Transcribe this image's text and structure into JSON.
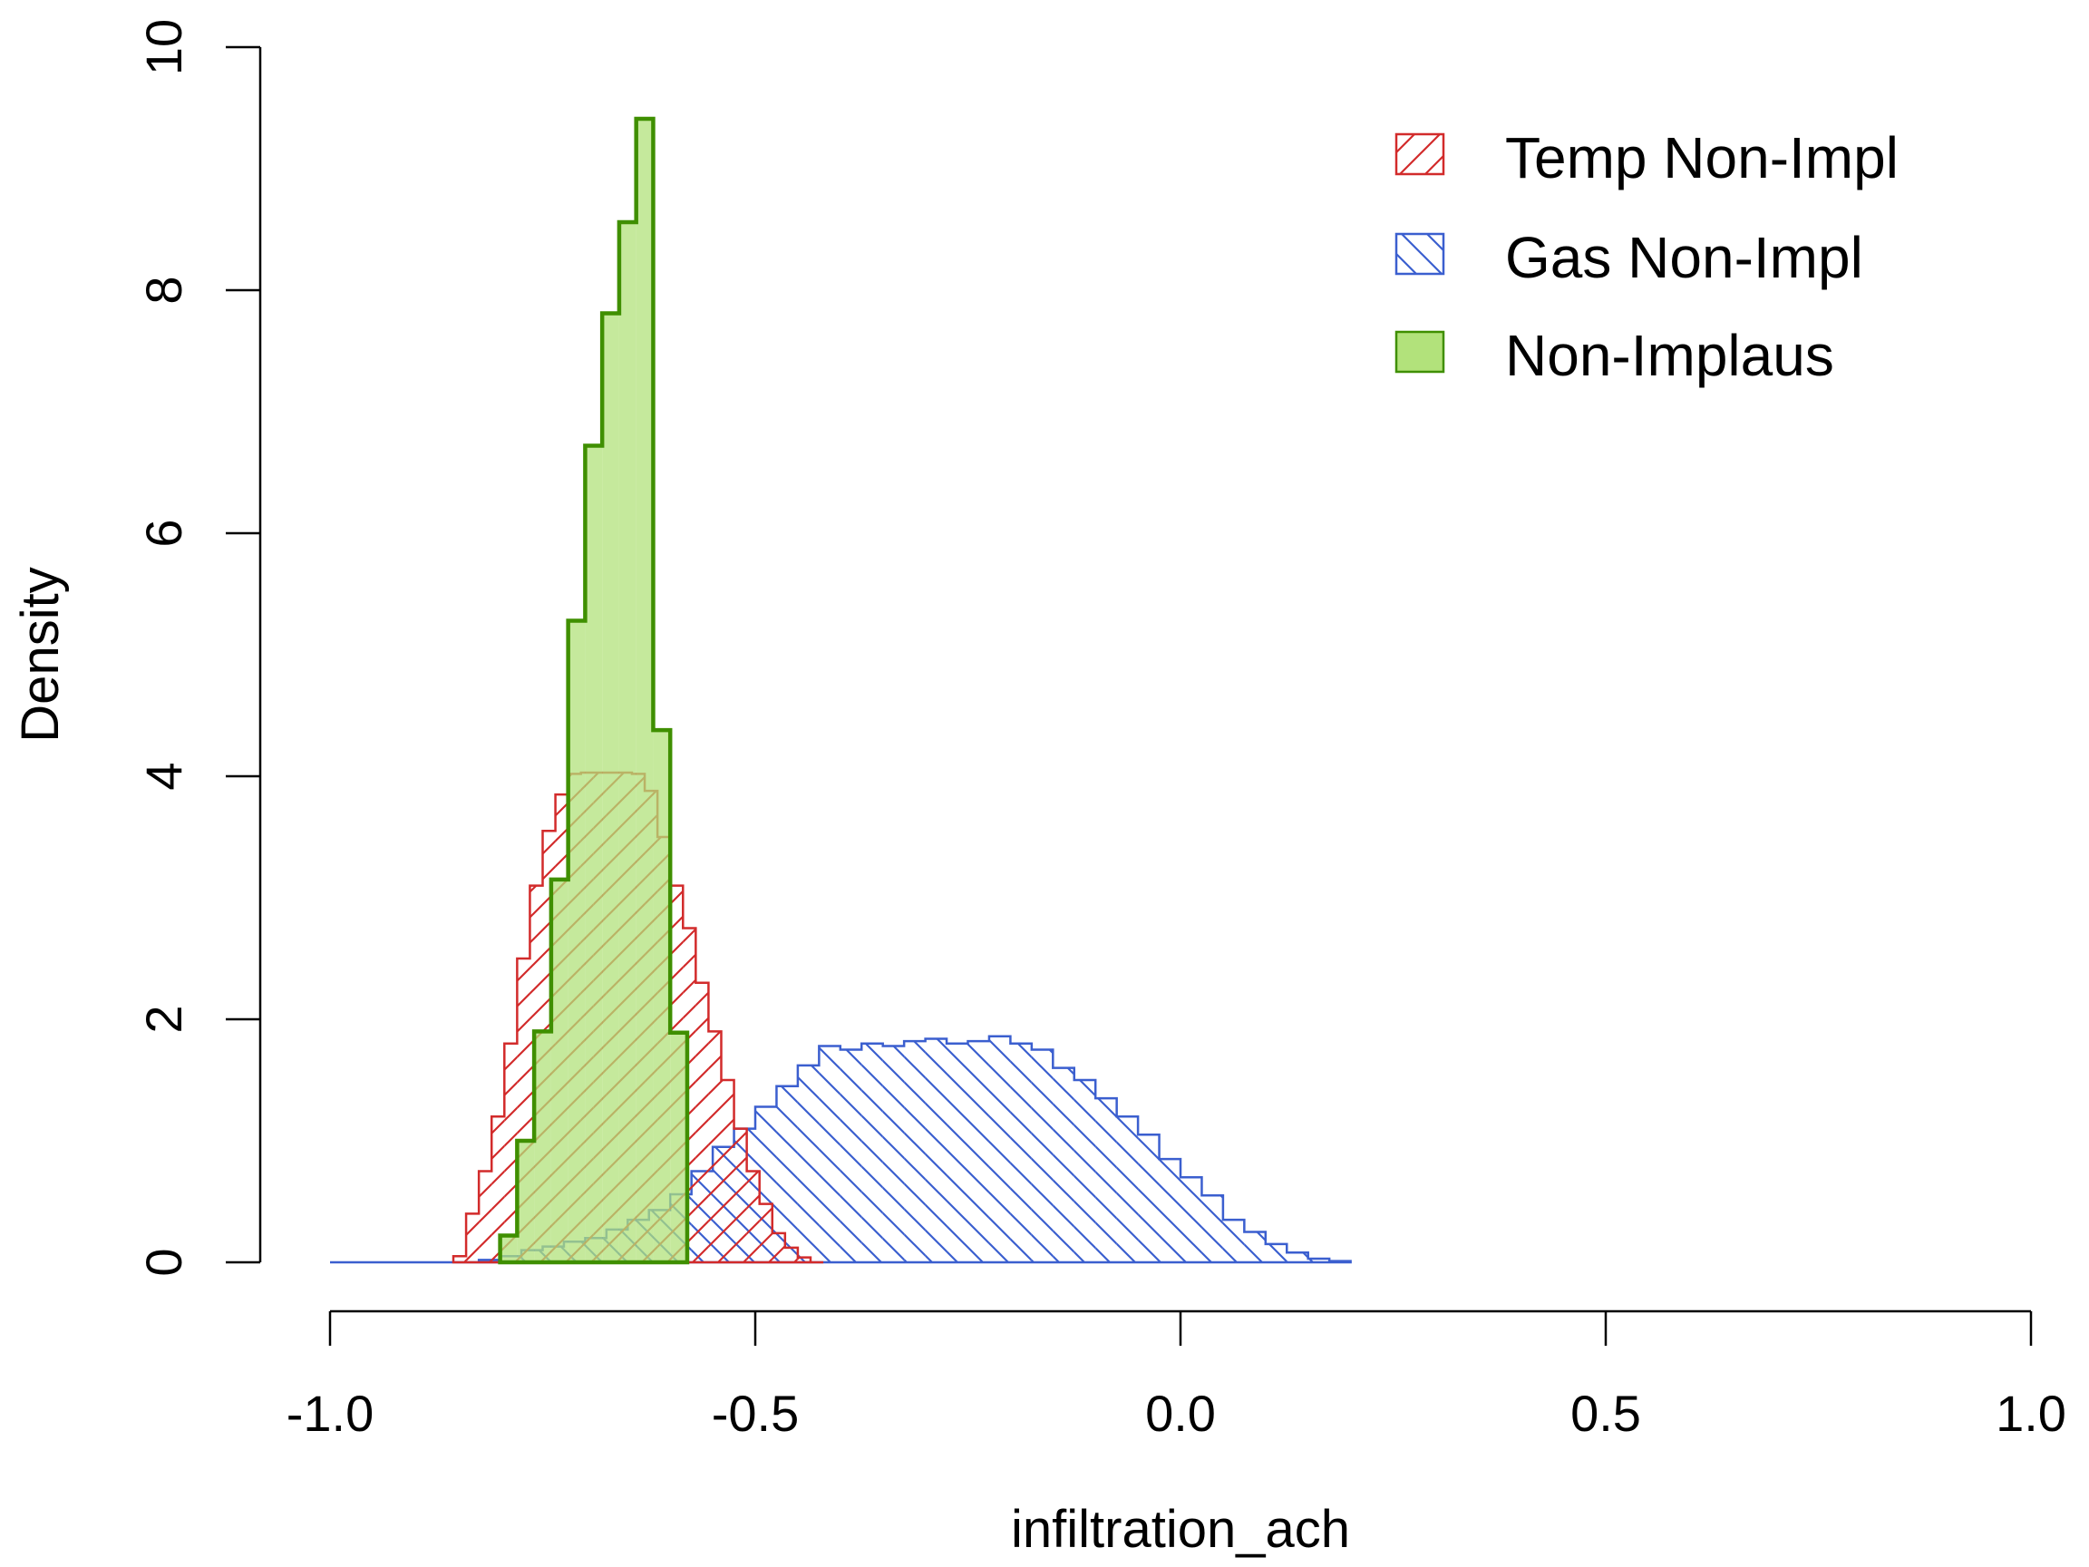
{
  "chart_data": {
    "type": "histogram-step-density",
    "title": "",
    "xlabel": "infiltration_ach",
    "ylabel": "Density",
    "xlim": [
      -1.0,
      1.0
    ],
    "ylim": [
      0,
      10
    ],
    "x_ticks": [
      -1.0,
      -0.5,
      0.0,
      0.5,
      1.0
    ],
    "x_tick_labels": [
      "-1.0",
      "-0.5",
      "0.0",
      "0.5",
      "1.0"
    ],
    "y_ticks": [
      0,
      2,
      4,
      6,
      8,
      10
    ],
    "y_tick_labels": [
      "0",
      "2",
      "4",
      "6",
      "8",
      "10"
    ],
    "grid": false,
    "legend_position": "top-right",
    "series": [
      {
        "name": "Temp Non-Impl",
        "style": "hatch-forward",
        "color": "#d22b2b",
        "x": [
          -0.855,
          -0.84,
          -0.825,
          -0.81,
          -0.795,
          -0.78,
          -0.765,
          -0.75,
          -0.735,
          -0.72,
          -0.705,
          -0.69,
          -0.675,
          -0.66,
          -0.645,
          -0.63,
          -0.615,
          -0.6,
          -0.585,
          -0.57,
          -0.555,
          -0.54,
          -0.525,
          -0.51,
          -0.495,
          -0.48,
          -0.465,
          -0.45,
          -0.435
        ],
        "density": [
          0.05,
          0.4,
          0.75,
          1.2,
          1.8,
          2.5,
          3.1,
          3.55,
          3.85,
          4.02,
          4.03,
          4.03,
          4.03,
          4.03,
          4.02,
          3.88,
          3.5,
          3.1,
          2.75,
          2.3,
          1.9,
          1.5,
          1.1,
          0.75,
          0.48,
          0.24,
          0.12,
          0.04,
          0.0
        ]
      },
      {
        "name": "Gas Non-Impl",
        "style": "hatch-backward",
        "color": "#3b5fcf",
        "x": [
          -1.0,
          -0.975,
          -0.95,
          -0.925,
          -0.9,
          -0.875,
          -0.85,
          -0.825,
          -0.8,
          -0.775,
          -0.75,
          -0.725,
          -0.7,
          -0.675,
          -0.65,
          -0.625,
          -0.6,
          -0.575,
          -0.55,
          -0.525,
          -0.5,
          -0.475,
          -0.45,
          -0.425,
          -0.4,
          -0.375,
          -0.35,
          -0.325,
          -0.3,
          -0.275,
          -0.25,
          -0.225,
          -0.2,
          -0.175,
          -0.15,
          -0.125,
          -0.1,
          -0.075,
          -0.05,
          -0.025,
          0.0,
          0.025,
          0.05,
          0.075,
          0.1,
          0.125,
          0.15,
          0.175
        ],
        "density": [
          0.0,
          0.0,
          0.0,
          0.0,
          0.0,
          0.0,
          0.0,
          0.02,
          0.05,
          0.1,
          0.13,
          0.17,
          0.2,
          0.27,
          0.35,
          0.43,
          0.56,
          0.75,
          0.95,
          1.1,
          1.28,
          1.45,
          1.62,
          1.78,
          1.75,
          1.8,
          1.78,
          1.82,
          1.84,
          1.8,
          1.82,
          1.86,
          1.8,
          1.75,
          1.6,
          1.5,
          1.35,
          1.2,
          1.05,
          0.85,
          0.7,
          0.55,
          0.35,
          0.25,
          0.15,
          0.08,
          0.03,
          0.01
        ]
      },
      {
        "name": "Non-Implaus",
        "style": "filled",
        "color": "#b2e27b",
        "border": "#3f8f00",
        "x": [
          -0.8,
          -0.78,
          -0.76,
          -0.74,
          -0.72,
          -0.7,
          -0.68,
          -0.66,
          -0.64,
          -0.62,
          -0.6
        ],
        "density": [
          0.22,
          1.0,
          1.9,
          3.15,
          5.28,
          6.72,
          7.81,
          8.56,
          9.41,
          4.38,
          1.89
        ]
      }
    ]
  },
  "legend": {
    "items": [
      {
        "label": "Temp Non-Impl"
      },
      {
        "label": "Gas Non-Impl"
      },
      {
        "label": "Non-Implaus"
      }
    ]
  }
}
